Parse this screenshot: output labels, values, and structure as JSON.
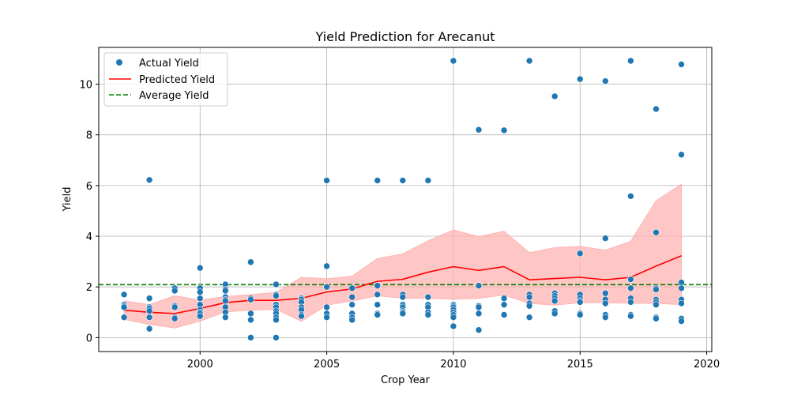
{
  "chart_data": {
    "type": "scatter",
    "title": "Yield Prediction for Arecanut",
    "xlabel": "Crop Year",
    "ylabel": "Yield",
    "xlim": [
      1996.0,
      2020.2
    ],
    "ylim": [
      -0.55,
      11.45
    ],
    "xticks": [
      2000,
      2005,
      2010,
      2015,
      2020
    ],
    "yticks": [
      0,
      2,
      4,
      6,
      8,
      10
    ],
    "grid": true,
    "legend_position": "top-left",
    "legend": {
      "actual_label": "Actual Yield",
      "predicted_label": "Predicted Yield",
      "average_label": "Average Yield"
    },
    "colors": {
      "actual": "#1f77b4",
      "predicted": "#ff0000",
      "band": "#ffb3b3",
      "average": "#008000"
    },
    "average_yield": 2.09,
    "actual": [
      [
        1997,
        1.7
      ],
      [
        1997,
        1.3
      ],
      [
        1997,
        1.25
      ],
      [
        1997,
        1.2
      ],
      [
        1997,
        0.8
      ],
      [
        1998,
        6.22
      ],
      [
        1998,
        1.55
      ],
      [
        1998,
        1.2
      ],
      [
        1998,
        1.15
      ],
      [
        1998,
        1.05
      ],
      [
        1998,
        0.8
      ],
      [
        1998,
        0.35
      ],
      [
        1999,
        1.95
      ],
      [
        1999,
        1.85
      ],
      [
        1999,
        1.25
      ],
      [
        1999,
        1.2
      ],
      [
        1999,
        0.8
      ],
      [
        1999,
        0.75
      ],
      [
        2000,
        2.75
      ],
      [
        2000,
        1.95
      ],
      [
        2000,
        1.8
      ],
      [
        2000,
        1.55
      ],
      [
        2000,
        1.3
      ],
      [
        2000,
        1.1
      ],
      [
        2000,
        1.0
      ],
      [
        2000,
        0.95
      ],
      [
        2000,
        0.85
      ],
      [
        2001,
        2.1
      ],
      [
        2001,
        1.9
      ],
      [
        2001,
        1.85
      ],
      [
        2001,
        1.6
      ],
      [
        2001,
        1.5
      ],
      [
        2001,
        1.45
      ],
      [
        2001,
        1.2
      ],
      [
        2001,
        1.0
      ],
      [
        2001,
        0.8
      ],
      [
        2002,
        2.98
      ],
      [
        2002,
        1.55
      ],
      [
        2002,
        1.5
      ],
      [
        2002,
        0.95
      ],
      [
        2002,
        0.7
      ],
      [
        2002,
        0.0
      ],
      [
        2003,
        2.1
      ],
      [
        2003,
        1.7
      ],
      [
        2003,
        1.65
      ],
      [
        2003,
        1.3
      ],
      [
        2003,
        1.2
      ],
      [
        2003,
        1.05
      ],
      [
        2003,
        0.95
      ],
      [
        2003,
        0.8
      ],
      [
        2003,
        0.7
      ],
      [
        2003,
        0.0
      ],
      [
        2004,
        1.55
      ],
      [
        2004,
        1.5
      ],
      [
        2004,
        1.4
      ],
      [
        2004,
        1.2
      ],
      [
        2004,
        1.1
      ],
      [
        2004,
        0.9
      ],
      [
        2004,
        0.85
      ],
      [
        2005,
        6.2
      ],
      [
        2005,
        2.82
      ],
      [
        2005,
        2.0
      ],
      [
        2005,
        1.2
      ],
      [
        2005,
        0.95
      ],
      [
        2005,
        0.8
      ],
      [
        2006,
        1.95
      ],
      [
        2006,
        1.6
      ],
      [
        2006,
        1.3
      ],
      [
        2006,
        0.95
      ],
      [
        2006,
        0.8
      ],
      [
        2006,
        0.7
      ],
      [
        2007,
        6.2
      ],
      [
        2007,
        2.05
      ],
      [
        2007,
        1.7
      ],
      [
        2007,
        1.3
      ],
      [
        2007,
        0.95
      ],
      [
        2007,
        0.9
      ],
      [
        2008,
        6.2
      ],
      [
        2008,
        1.7
      ],
      [
        2008,
        1.6
      ],
      [
        2008,
        1.3
      ],
      [
        2008,
        1.2
      ],
      [
        2008,
        1.05
      ],
      [
        2008,
        1.0
      ],
      [
        2008,
        0.95
      ],
      [
        2009,
        6.2
      ],
      [
        2009,
        1.6
      ],
      [
        2009,
        1.3
      ],
      [
        2009,
        1.2
      ],
      [
        2009,
        1.0
      ],
      [
        2009,
        0.9
      ],
      [
        2010,
        10.92
      ],
      [
        2010,
        1.3
      ],
      [
        2010,
        1.25
      ],
      [
        2010,
        1.2
      ],
      [
        2010,
        1.1
      ],
      [
        2010,
        1.0
      ],
      [
        2010,
        0.9
      ],
      [
        2010,
        0.8
      ],
      [
        2010,
        0.45
      ],
      [
        2011,
        8.2
      ],
      [
        2011,
        2.05
      ],
      [
        2011,
        1.25
      ],
      [
        2011,
        1.2
      ],
      [
        2011,
        0.95
      ],
      [
        2011,
        0.3
      ],
      [
        2012,
        8.18
      ],
      [
        2012,
        1.55
      ],
      [
        2012,
        1.3
      ],
      [
        2012,
        0.9
      ],
      [
        2013,
        10.92
      ],
      [
        2013,
        1.7
      ],
      [
        2013,
        1.6
      ],
      [
        2013,
        1.35
      ],
      [
        2013,
        1.25
      ],
      [
        2013,
        0.8
      ],
      [
        2014,
        9.52
      ],
      [
        2014,
        1.75
      ],
      [
        2014,
        1.65
      ],
      [
        2014,
        1.55
      ],
      [
        2014,
        1.45
      ],
      [
        2014,
        1.05
      ],
      [
        2014,
        0.95
      ],
      [
        2015,
        10.2
      ],
      [
        2015,
        3.32
      ],
      [
        2015,
        1.7
      ],
      [
        2015,
        1.55
      ],
      [
        2015,
        1.45
      ],
      [
        2015,
        1.4
      ],
      [
        2015,
        0.95
      ],
      [
        2015,
        0.9
      ],
      [
        2016,
        10.12
      ],
      [
        2016,
        3.92
      ],
      [
        2016,
        1.75
      ],
      [
        2016,
        1.5
      ],
      [
        2016,
        1.35
      ],
      [
        2016,
        0.9
      ],
      [
        2016,
        0.8
      ],
      [
        2017,
        10.92
      ],
      [
        2017,
        5.58
      ],
      [
        2017,
        2.3
      ],
      [
        2017,
        1.95
      ],
      [
        2017,
        1.55
      ],
      [
        2017,
        1.4
      ],
      [
        2017,
        0.9
      ],
      [
        2017,
        0.85
      ],
      [
        2018,
        9.02
      ],
      [
        2018,
        4.15
      ],
      [
        2018,
        1.95
      ],
      [
        2018,
        1.9
      ],
      [
        2018,
        1.5
      ],
      [
        2018,
        1.4
      ],
      [
        2018,
        1.3
      ],
      [
        2018,
        0.8
      ],
      [
        2018,
        0.75
      ],
      [
        2019,
        10.78
      ],
      [
        2019,
        7.22
      ],
      [
        2019,
        2.18
      ],
      [
        2019,
        1.95
      ],
      [
        2019,
        1.5
      ],
      [
        2019,
        1.35
      ],
      [
        2019,
        0.75
      ],
      [
        2019,
        0.65
      ]
    ],
    "predicted": [
      [
        1997,
        1.08
      ],
      [
        1998,
        1.0
      ],
      [
        1999,
        0.95
      ],
      [
        2000,
        1.15
      ],
      [
        2001,
        1.38
      ],
      [
        2002,
        1.47
      ],
      [
        2003,
        1.47
      ],
      [
        2004,
        1.55
      ],
      [
        2005,
        1.8
      ],
      [
        2006,
        1.92
      ],
      [
        2007,
        2.22
      ],
      [
        2008,
        2.3
      ],
      [
        2009,
        2.58
      ],
      [
        2010,
        2.8
      ],
      [
        2011,
        2.65
      ],
      [
        2012,
        2.8
      ],
      [
        2013,
        2.28
      ],
      [
        2014,
        2.33
      ],
      [
        2015,
        2.38
      ],
      [
        2016,
        2.28
      ],
      [
        2017,
        2.38
      ],
      [
        2018,
        2.82
      ],
      [
        2019,
        3.23
      ]
    ],
    "band_upper": [
      1.45,
      1.3,
      1.65,
      1.48,
      1.62,
      1.7,
      1.78,
      2.38,
      2.32,
      2.42,
      3.12,
      3.3,
      3.82,
      4.25,
      3.98,
      4.2,
      3.35,
      3.55,
      3.6,
      3.45,
      3.8,
      5.4,
      6.05
    ],
    "band_lower": [
      0.72,
      0.52,
      0.38,
      0.65,
      1.02,
      1.08,
      1.12,
      0.65,
      1.28,
      1.45,
      1.65,
      1.55,
      1.55,
      1.52,
      1.55,
      1.68,
      1.35,
      1.28,
      1.38,
      1.38,
      1.35,
      1.35,
      1.3
    ]
  }
}
